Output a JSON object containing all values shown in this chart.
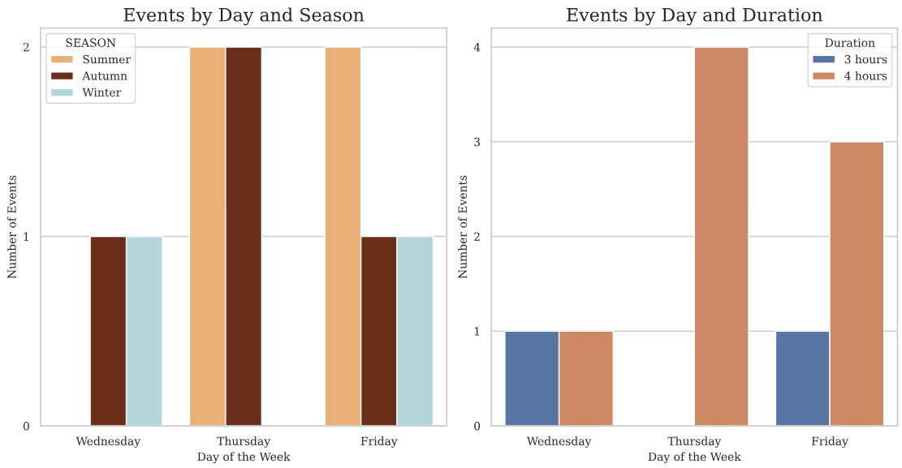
{
  "chart_data": [
    {
      "type": "bar",
      "title": "Events by Day and Season",
      "xlabel": "Day of the Week",
      "ylabel": "Number of Events",
      "legend_title": "SEASON",
      "categories": [
        "Wednesday",
        "Thursday",
        "Friday"
      ],
      "series": [
        {
          "name": "Summer",
          "color": "#eab176",
          "values": [
            null,
            2,
            2
          ]
        },
        {
          "name": "Autumn",
          "color": "#6a2e1b",
          "values": [
            1,
            2,
            1
          ]
        },
        {
          "name": "Winter",
          "color": "#b4d5da",
          "values": [
            1,
            null,
            1
          ]
        }
      ],
      "ylim": [
        0,
        2.1
      ],
      "yticks": [
        0,
        1,
        2
      ],
      "grid": "y",
      "legend": "top left"
    },
    {
      "type": "bar",
      "title": "Events by Day and Duration",
      "xlabel": "Day of the Week",
      "ylabel": "Number of Events",
      "legend_title": "Duration",
      "categories": [
        "Wednesday",
        "Thursday",
        "Friday"
      ],
      "series": [
        {
          "name": "3 hours",
          "color": "#5975a4",
          "values": [
            1,
            null,
            1
          ]
        },
        {
          "name": "4 hours",
          "color": "#cc8963",
          "values": [
            1,
            4,
            3
          ]
        }
      ],
      "ylim": [
        0,
        4.2
      ],
      "yticks": [
        0,
        1,
        2,
        3,
        4
      ],
      "grid": "y",
      "legend": "top right"
    }
  ]
}
